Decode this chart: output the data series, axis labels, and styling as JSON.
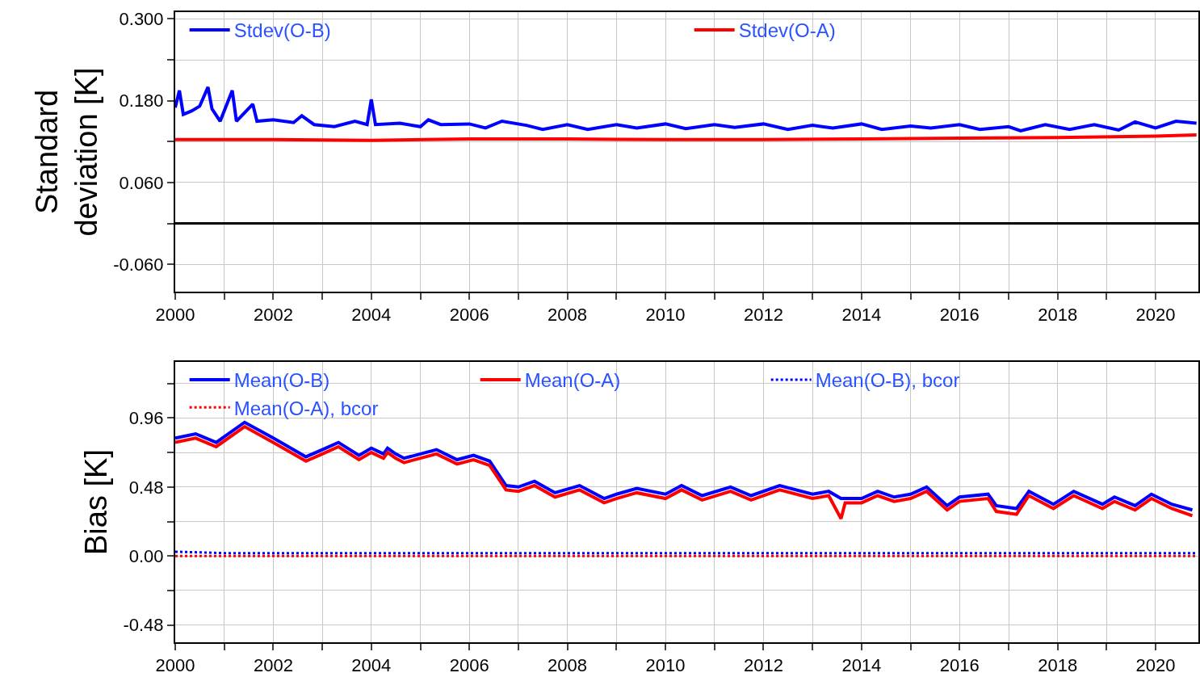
{
  "chart_data": [
    {
      "type": "line",
      "ylabel": "Standard deviation [K]",
      "xlim": [
        "2000-01-01",
        "2020-11-15"
      ],
      "xticks": [
        {
          "value": "2000",
          "label": "2000"
        },
        {
          "value": "2001",
          "label": null
        },
        {
          "value": "2002",
          "label": "2002"
        },
        {
          "value": "2003",
          "label": null
        },
        {
          "value": "2004",
          "label": "2004"
        },
        {
          "value": "2005",
          "label": null
        },
        {
          "value": "2006",
          "label": "2006"
        },
        {
          "value": "2007",
          "label": null
        },
        {
          "value": "2008",
          "label": "2008"
        },
        {
          "value": "2009",
          "label": null
        },
        {
          "value": "2010",
          "label": "2010"
        },
        {
          "value": "2011",
          "label": null
        },
        {
          "value": "2012",
          "label": "2012"
        },
        {
          "value": "2013",
          "label": null
        },
        {
          "value": "2014",
          "label": "2014"
        },
        {
          "value": "2015",
          "label": null
        },
        {
          "value": "2016",
          "label": "2016"
        },
        {
          "value": "2017",
          "label": null
        },
        {
          "value": "2018",
          "label": "2018"
        },
        {
          "value": "2019",
          "label": null
        },
        {
          "value": "2020",
          "label": "2020"
        }
      ],
      "ylim": [
        -0.1,
        0.31
      ],
      "yticks": [
        {
          "value": 0.3,
          "label": "0.300"
        },
        {
          "value": 0.24,
          "label": null
        },
        {
          "value": 0.18,
          "label": "0.180"
        },
        {
          "value": 0.12,
          "label": null
        },
        {
          "value": 0.06,
          "label": "0.060"
        },
        {
          "value": 0,
          "label": null
        },
        {
          "value": -0.06,
          "label": "-0.060"
        }
      ],
      "grid": true,
      "legend": "top",
      "marker": "none",
      "ref_lines": [
        {
          "axis": "y",
          "value": 0,
          "color": "#000000"
        }
      ],
      "series": [
        {
          "name": "Stdev(O-B)",
          "color": "#0000ff",
          "line_style": "solid",
          "x": [
            "2000-01",
            "2000-02",
            "2000-03",
            "2000-05",
            "2000-07",
            "2000-09",
            "2000-10",
            "2000-12",
            "2001-03",
            "2001-04",
            "2001-08",
            "2001-09",
            "2002-01",
            "2002-06",
            "2002-08",
            "2002-11",
            "2003-04",
            "2003-09",
            "2003-12",
            "2004-01",
            "2004-02",
            "2004-08",
            "2005-01",
            "2005-03",
            "2005-06",
            "2006-01",
            "2006-05",
            "2006-09",
            "2007-03",
            "2007-07",
            "2008-01",
            "2008-06",
            "2009-01",
            "2009-06",
            "2010-01",
            "2010-06",
            "2011-01",
            "2011-06",
            "2012-01",
            "2012-07",
            "2013-01",
            "2013-06",
            "2014-01",
            "2014-06",
            "2015-01",
            "2015-06",
            "2016-01",
            "2016-06",
            "2017-01",
            "2017-04",
            "2017-10",
            "2018-04",
            "2018-10",
            "2019-04",
            "2019-08",
            "2020-01",
            "2020-06",
            "2020-11"
          ],
          "values": [
            0.17,
            0.195,
            0.16,
            0.165,
            0.172,
            0.2,
            0.168,
            0.15,
            0.195,
            0.15,
            0.175,
            0.15,
            0.152,
            0.148,
            0.158,
            0.145,
            0.142,
            0.15,
            0.145,
            0.182,
            0.145,
            0.147,
            0.142,
            0.152,
            0.145,
            0.146,
            0.14,
            0.15,
            0.144,
            0.138,
            0.145,
            0.138,
            0.145,
            0.14,
            0.146,
            0.139,
            0.145,
            0.141,
            0.146,
            0.138,
            0.144,
            0.14,
            0.146,
            0.138,
            0.143,
            0.14,
            0.145,
            0.138,
            0.142,
            0.136,
            0.145,
            0.138,
            0.145,
            0.137,
            0.149,
            0.14,
            0.15,
            0.147
          ]
        },
        {
          "name": "Stdev(O-A)",
          "color": "#ff0000",
          "line_style": "solid",
          "x": [
            "2000-01",
            "2002-01",
            "2004-01",
            "2006-01",
            "2008-01",
            "2010-01",
            "2012-01",
            "2014-01",
            "2016-01",
            "2018-01",
            "2020-01",
            "2020-11"
          ],
          "values": [
            0.123,
            0.123,
            0.122,
            0.124,
            0.124,
            0.123,
            0.123,
            0.124,
            0.125,
            0.126,
            0.128,
            0.13
          ]
        }
      ]
    },
    {
      "type": "line",
      "ylabel": "Bias [K]",
      "xlim": [
        "2000-01-01",
        "2020-11-15"
      ],
      "xticks": [
        {
          "value": "2000",
          "label": "2000"
        },
        {
          "value": "2001",
          "label": null
        },
        {
          "value": "2002",
          "label": "2002"
        },
        {
          "value": "2003",
          "label": null
        },
        {
          "value": "2004",
          "label": "2004"
        },
        {
          "value": "2005",
          "label": null
        },
        {
          "value": "2006",
          "label": "2006"
        },
        {
          "value": "2007",
          "label": null
        },
        {
          "value": "2008",
          "label": "2008"
        },
        {
          "value": "2009",
          "label": null
        },
        {
          "value": "2010",
          "label": "2010"
        },
        {
          "value": "2011",
          "label": null
        },
        {
          "value": "2012",
          "label": "2012"
        },
        {
          "value": "2013",
          "label": null
        },
        {
          "value": "2014",
          "label": "2014"
        },
        {
          "value": "2015",
          "label": null
        },
        {
          "value": "2016",
          "label": "2016"
        },
        {
          "value": "2017",
          "label": null
        },
        {
          "value": "2018",
          "label": "2018"
        },
        {
          "value": "2019",
          "label": null
        },
        {
          "value": "2020",
          "label": "2020"
        }
      ],
      "ylim": [
        -0.6,
        1.35
      ],
      "yticks": [
        {
          "value": 1.2,
          "label": null
        },
        {
          "value": 0.96,
          "label": "0.96"
        },
        {
          "value": 0.72,
          "label": null
        },
        {
          "value": 0.48,
          "label": "0.48"
        },
        {
          "value": 0.24,
          "label": null
        },
        {
          "value": 0,
          "label": "0.00"
        },
        {
          "value": -0.24,
          "label": null
        },
        {
          "value": -0.48,
          "label": "-0.48"
        }
      ],
      "grid": true,
      "legend": "top",
      "marker": "none",
      "series": [
        {
          "name": "Mean(O-B)",
          "color": "#0000ff",
          "line_style": "solid",
          "x": [
            "2000-01",
            "2000-06",
            "2000-11",
            "2001-06",
            "2002-01",
            "2002-09",
            "2003-01",
            "2003-05",
            "2003-10",
            "2004-01",
            "2004-04",
            "2004-05",
            "2004-07",
            "2004-09",
            "2005-05",
            "2005-10",
            "2006-02",
            "2006-06",
            "2006-10",
            "2007-01",
            "2007-05",
            "2007-10",
            "2008-04",
            "2008-10",
            "2009-01",
            "2009-06",
            "2010-01",
            "2010-05",
            "2010-10",
            "2011-05",
            "2011-10",
            "2012-05",
            "2013-01",
            "2013-05",
            "2013-08",
            "2014-01",
            "2014-05",
            "2014-09",
            "2015-01",
            "2015-05",
            "2015-10",
            "2016-01",
            "2016-08",
            "2016-10",
            "2017-03",
            "2017-06",
            "2017-12",
            "2018-05",
            "2018-12",
            "2019-03",
            "2019-08",
            "2019-12",
            "2020-05",
            "2020-10"
          ],
          "values": [
            0.82,
            0.85,
            0.79,
            0.93,
            0.82,
            0.69,
            0.74,
            0.79,
            0.7,
            0.75,
            0.71,
            0.75,
            0.71,
            0.68,
            0.74,
            0.67,
            0.7,
            0.66,
            0.49,
            0.48,
            0.52,
            0.44,
            0.49,
            0.4,
            0.43,
            0.47,
            0.43,
            0.49,
            0.42,
            0.48,
            0.42,
            0.49,
            0.43,
            0.45,
            0.4,
            0.4,
            0.45,
            0.41,
            0.43,
            0.48,
            0.35,
            0.41,
            0.43,
            0.35,
            0.33,
            0.45,
            0.36,
            0.45,
            0.36,
            0.41,
            0.35,
            0.43,
            0.36,
            0.32
          ]
        },
        {
          "name": "Mean(O-A)",
          "color": "#ff0000",
          "line_style": "solid",
          "x": [
            "2000-01",
            "2000-06",
            "2000-11",
            "2001-06",
            "2002-01",
            "2002-09",
            "2003-01",
            "2003-05",
            "2003-10",
            "2004-01",
            "2004-04",
            "2004-05",
            "2004-07",
            "2004-09",
            "2005-05",
            "2005-10",
            "2006-02",
            "2006-06",
            "2006-10",
            "2007-01",
            "2007-05",
            "2007-10",
            "2008-04",
            "2008-10",
            "2009-01",
            "2009-06",
            "2010-01",
            "2010-05",
            "2010-10",
            "2011-05",
            "2011-10",
            "2012-05",
            "2013-01",
            "2013-05",
            "2013-08",
            "2013-09",
            "2014-01",
            "2014-05",
            "2014-09",
            "2015-01",
            "2015-05",
            "2015-10",
            "2016-01",
            "2016-08",
            "2016-10",
            "2017-03",
            "2017-06",
            "2017-12",
            "2018-05",
            "2018-12",
            "2019-03",
            "2019-08",
            "2019-12",
            "2020-05",
            "2020-10"
          ],
          "values": [
            0.79,
            0.82,
            0.76,
            0.9,
            0.79,
            0.66,
            0.71,
            0.76,
            0.67,
            0.72,
            0.68,
            0.72,
            0.68,
            0.65,
            0.71,
            0.64,
            0.67,
            0.63,
            0.46,
            0.45,
            0.49,
            0.41,
            0.46,
            0.37,
            0.4,
            0.44,
            0.4,
            0.46,
            0.39,
            0.45,
            0.39,
            0.46,
            0.4,
            0.42,
            0.26,
            0.37,
            0.37,
            0.42,
            0.38,
            0.4,
            0.45,
            0.32,
            0.38,
            0.4,
            0.31,
            0.29,
            0.42,
            0.33,
            0.42,
            0.33,
            0.38,
            0.32,
            0.4,
            0.33,
            0.28
          ]
        },
        {
          "name": "Mean(O-B), bcor",
          "color": "#0000ff",
          "line_style": "dotted",
          "x": [
            "2000-01",
            "2001-01",
            "2002-01",
            "2004-01",
            "2006-01",
            "2008-01",
            "2010-01",
            "2012-01",
            "2014-01",
            "2016-01",
            "2018-01",
            "2020-01",
            "2020-11"
          ],
          "values": [
            0.03,
            0.02,
            0.02,
            0.02,
            0.02,
            0.02,
            0.02,
            0.02,
            0.02,
            0.02,
            0.02,
            0.02,
            0.02
          ]
        },
        {
          "name": "Mean(O-A), bcor",
          "color": "#ff0000",
          "line_style": "dotted",
          "x": [
            "2000-01",
            "2005-01",
            "2010-01",
            "2015-01",
            "2020-11"
          ],
          "values": [
            0.0,
            0.0,
            0.0,
            0.0,
            0.0
          ]
        }
      ]
    }
  ]
}
